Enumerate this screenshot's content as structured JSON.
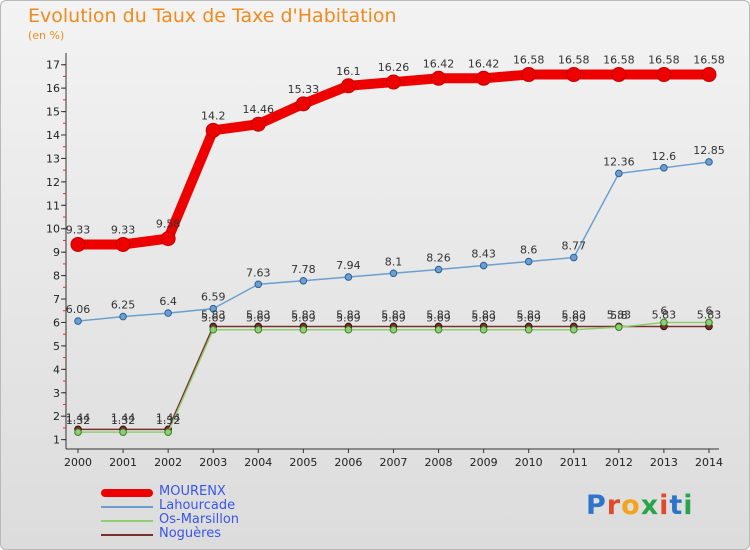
{
  "title": "Evolution du Taux de Taxe d'Habitation",
  "subtitle": "(en %)",
  "logo": {
    "text": "Proxiti",
    "colors": [
      "#2e74c9",
      "#e04a2b",
      "#f4a41c",
      "#2aa44a",
      "#e04a2b",
      "#2e74c9",
      "#2aa44a"
    ]
  },
  "chart_data": {
    "type": "line",
    "x": [
      "2000",
      "2001",
      "2002",
      "2003",
      "2004",
      "2005",
      "2006",
      "2007",
      "2008",
      "2009",
      "2010",
      "2011",
      "2012",
      "2013",
      "2014"
    ],
    "ylim": [
      0.6,
      17.5
    ],
    "yticks": [
      1,
      2,
      3,
      4,
      5,
      6,
      7,
      8,
      9,
      10,
      11,
      12,
      13,
      14,
      15,
      16,
      17
    ],
    "grid": false,
    "legend": "bottom-left",
    "series": [
      {
        "name": "MOURENX",
        "color": "#ee0000",
        "values": [
          9.33,
          9.33,
          9.58,
          14.2,
          14.46,
          15.33,
          16.1,
          16.26,
          16.42,
          16.42,
          16.58,
          16.58,
          16.58,
          16.58,
          16.58
        ],
        "labels": [
          "9.33",
          "9.33",
          "9.58",
          "14.2",
          "14.46",
          "15.33",
          "16.1",
          "16.26",
          "16.42",
          "16.42",
          "16.58",
          "16.58",
          "16.58",
          "16.58",
          "16.58"
        ]
      },
      {
        "name": "Lahourcade",
        "color": "#6a9fd0",
        "values": [
          6.06,
          6.25,
          6.4,
          6.59,
          7.63,
          7.78,
          7.94,
          8.1,
          8.26,
          8.43,
          8.6,
          8.77,
          12.36,
          12.6,
          12.85
        ],
        "labels": [
          "6.06",
          "6.25",
          "6.4",
          "6.59",
          "7.63",
          "7.78",
          "7.94",
          "8.1",
          "8.26",
          "8.43",
          "8.6",
          "8.77",
          "12.36",
          "12.6",
          "12.85"
        ]
      },
      {
        "name": "Os-Marsillon",
        "color": "#8ed070",
        "values": [
          1.32,
          1.32,
          1.32,
          5.69,
          5.69,
          5.69,
          5.69,
          5.69,
          5.69,
          5.69,
          5.69,
          5.69,
          5.8,
          6,
          6
        ],
        "labels": [
          "1.32",
          "1.32",
          "1.32",
          "5.69",
          "5.69",
          "5.69",
          "5.69",
          "5.69",
          "5.69",
          "5.69",
          "5.69",
          "5.69",
          "5.8",
          "6",
          "6"
        ]
      },
      {
        "name": "Noguères",
        "color": "#7a2e2e",
        "values": [
          1.44,
          1.44,
          1.44,
          5.83,
          5.83,
          5.83,
          5.83,
          5.83,
          5.83,
          5.83,
          5.83,
          5.83,
          5.83,
          5.83,
          5.83
        ],
        "labels": [
          "1.44",
          "1.44",
          "1.44",
          "5.83",
          "5.83",
          "5.83",
          "5.83",
          "5.83",
          "5.83",
          "5.83",
          "5.83",
          "5.83",
          "5.83",
          "5.83",
          "5.83"
        ]
      }
    ]
  }
}
